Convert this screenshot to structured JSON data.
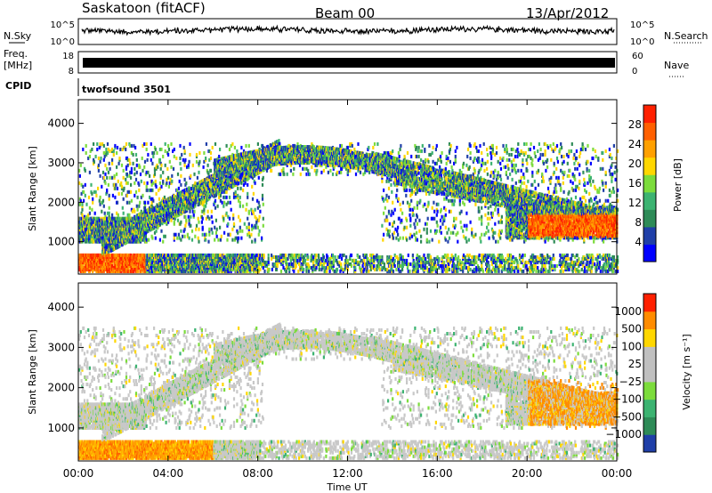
{
  "header": {
    "station": "Saskatoon (fitACF)",
    "beam": "Beam 00",
    "date": "13/Apr/2012"
  },
  "top_panels": {
    "nsky_label": "N.Sky",
    "nsky_ticks": [
      "10^5",
      "10^0"
    ],
    "nsearch_label": "N.Search",
    "nsearch_ticks": [
      "10^5",
      "10^0"
    ],
    "freq_label_1": "Freq.",
    "freq_label_2": "[MHz]",
    "freq_ticks": [
      "18",
      "8"
    ],
    "nave_label": "Nave",
    "nave_ticks": [
      "60",
      "0"
    ],
    "cpid_label": "CPID",
    "cpid_value": "twofsound 3501"
  },
  "colors": {
    "power_scale": [
      "#0000ff",
      "#1f3fa8",
      "#2e8b57",
      "#3cb371",
      "#7cdc3c",
      "#ffd700",
      "#ffa000",
      "#ff6000",
      "#ff2000"
    ],
    "velocity_scale": [
      "#1f3fa8",
      "#2e8b57",
      "#3cb371",
      "#7cdc3c",
      "#c0c0c0",
      "#c0c0c0",
      "#ffd700",
      "#ff8c00",
      "#ff2000"
    ]
  },
  "chart_data": [
    {
      "type": "heatmap",
      "name": "power",
      "ylabel": "Slant Range [km]",
      "y_ticks": [
        "1000",
        "2000",
        "3000",
        "4000"
      ],
      "y_range": [
        180,
        4600
      ],
      "colorbar_label": "Power [dB]",
      "colorbar_ticks": [
        "28",
        "24",
        "20",
        "16",
        "12",
        "8",
        "4"
      ],
      "colorbar_range": [
        0,
        32
      ]
    },
    {
      "type": "heatmap",
      "name": "velocity",
      "ylabel": "Slant Range [km]",
      "y_ticks": [
        "1000",
        "2000",
        "3000",
        "4000"
      ],
      "y_range": [
        180,
        4600
      ],
      "colorbar_label": "Velocity [m s⁻¹]",
      "colorbar_ticks": [
        "1000",
        "500",
        "100",
        "25",
        "−25",
        "−100",
        "−500",
        "−1000"
      ]
    }
  ],
  "x_axis": {
    "label": "Time UT",
    "ticks": [
      "00:00",
      "04:00",
      "08:00",
      "12:00",
      "16:00",
      "20:00",
      "00:00"
    ]
  }
}
